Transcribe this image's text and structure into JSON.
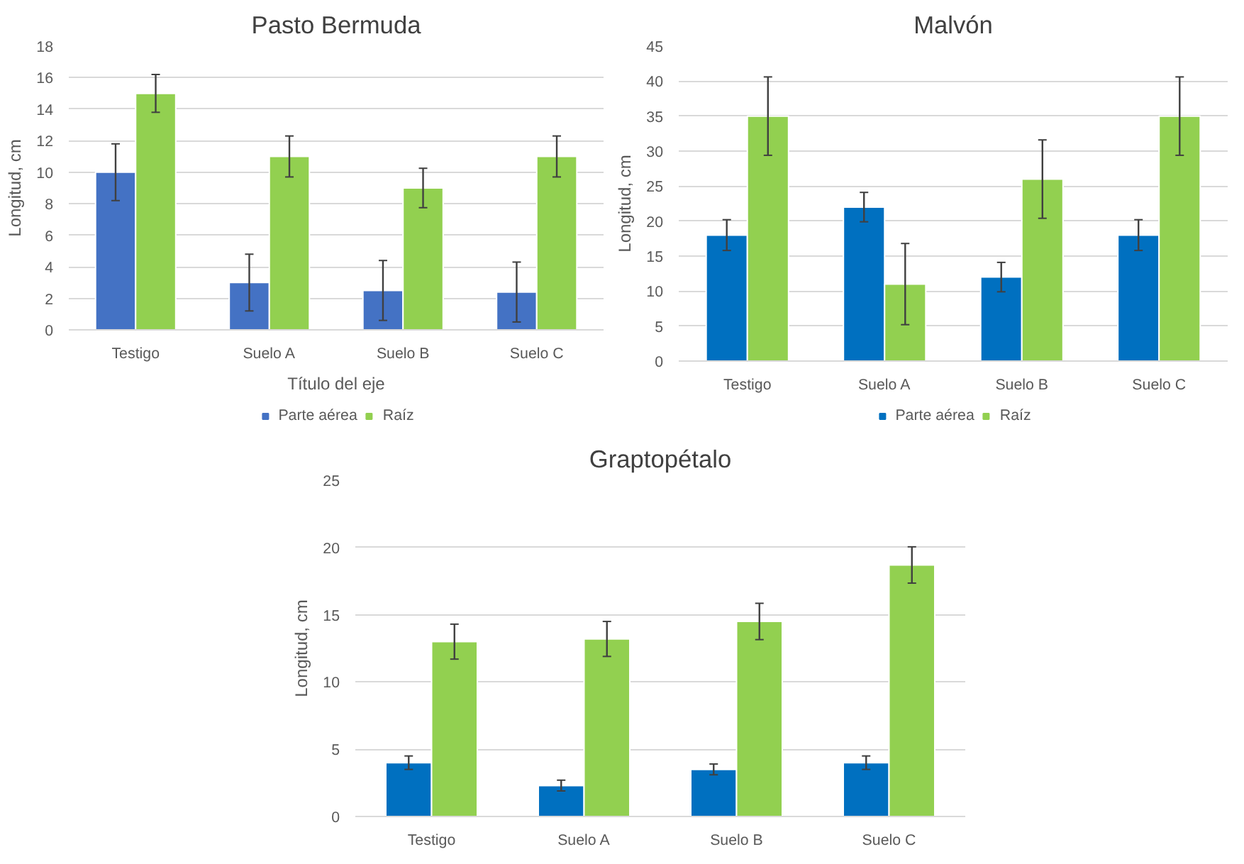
{
  "chart_data": [
    {
      "type": "bar",
      "title": "Pasto Bermuda",
      "xlabel": "Título del eje",
      "ylabel": "Longitud, cm",
      "categories": [
        "Testigo",
        "Suelo A",
        "Suelo B",
        "Suelo C"
      ],
      "series": [
        {
          "name": "Parte aérea",
          "color": "#4472c4",
          "values": [
            10,
            3,
            2.5,
            2.4
          ],
          "errors": [
            1.8,
            1.8,
            1.9,
            1.9
          ]
        },
        {
          "name": "Raíz",
          "color": "#92d050",
          "values": [
            15,
            11,
            9,
            11
          ],
          "errors": [
            1.2,
            1.3,
            1.25,
            1.3
          ]
        }
      ],
      "ylim": [
        0,
        18
      ],
      "yticks": [
        0,
        2,
        4,
        6,
        8,
        10,
        12,
        14,
        16,
        18
      ],
      "grid": "y",
      "legend": "bottom"
    },
    {
      "type": "bar",
      "title": "Malvón",
      "ylabel": "Longitud, cm",
      "categories": [
        "Testigo",
        "Suelo A",
        "Suelo B",
        "Suelo C"
      ],
      "series": [
        {
          "name": "Parte aérea",
          "color": "#0070c0",
          "values": [
            18,
            22,
            12,
            18
          ],
          "errors": [
            2.2,
            2.1,
            2.1,
            2.2
          ]
        },
        {
          "name": "Raíz",
          "color": "#92d050",
          "values": [
            35,
            11,
            26,
            35
          ],
          "errors": [
            5.6,
            5.8,
            5.6,
            5.6
          ]
        }
      ],
      "ylim": [
        0,
        45
      ],
      "yticks": [
        0,
        5,
        10,
        15,
        20,
        25,
        30,
        35,
        40,
        45
      ],
      "grid": "y",
      "legend": "bottom"
    },
    {
      "type": "bar",
      "title": "Graptopétalo",
      "ylabel": "Longitud, cm",
      "categories": [
        "Testigo",
        "Suelo A",
        "Suelo B",
        "Suelo C"
      ],
      "series": [
        {
          "color": "#0070c0",
          "values": [
            4,
            2.3,
            3.5,
            4
          ],
          "errors": [
            0.5,
            0.4,
            0.4,
            0.5
          ]
        },
        {
          "color": "#92d050",
          "values": [
            13,
            13.2,
            14.5,
            18.7
          ],
          "errors": [
            1.3,
            1.3,
            1.35,
            1.35
          ]
        }
      ],
      "ylim": [
        0,
        25
      ],
      "yticks": [
        0,
        5,
        10,
        15,
        20,
        25
      ],
      "grid": "y"
    }
  ]
}
